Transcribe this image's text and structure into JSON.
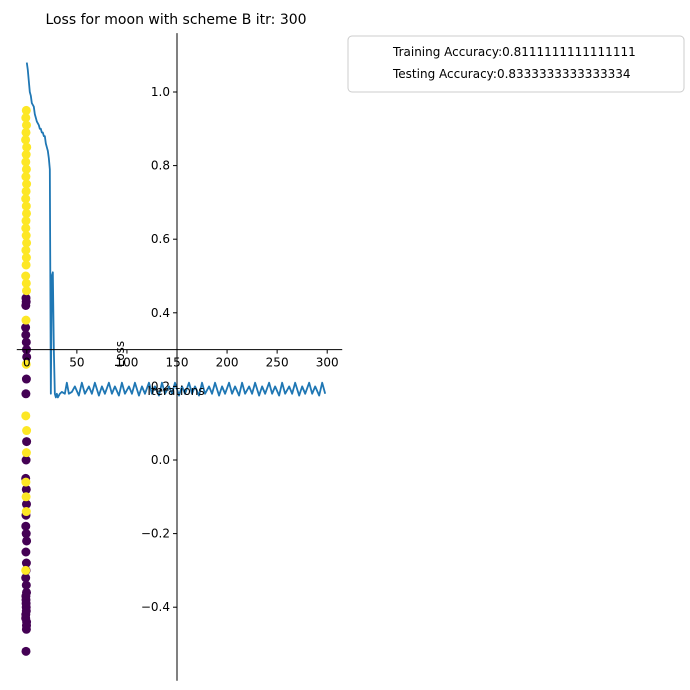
{
  "chart_data": {
    "type": "line",
    "title": "Loss for moon with scheme B itr: 300",
    "xlabel": "Iterations",
    "ylabel": "Loss",
    "xlim": [
      -10,
      315
    ],
    "ylim": [
      -0.6,
      1.16
    ],
    "grid": false,
    "legend_position": "outside-top-right",
    "x_ticks": [
      0,
      50,
      100,
      150,
      200,
      250,
      300
    ],
    "y_ticks": [
      -0.4,
      -0.2,
      0.0,
      0.2,
      0.4,
      0.6,
      0.8,
      1.0
    ],
    "x_tick_labels": [
      "0",
      "50",
      "100",
      "150",
      "200",
      "250",
      "300"
    ],
    "y_tick_labels": [
      "−0.4",
      "−0.2",
      "0.0",
      "0.2",
      "0.4",
      "0.6",
      "0.8",
      "1.0"
    ],
    "legend": [
      {
        "label": "Training Accuracy:0.8111111111111111"
      },
      {
        "label": "Testing Accuracy:0.8333333333333334"
      }
    ],
    "colors": {
      "loss_line": "#1f77b4",
      "class_0": "#440154",
      "class_1": "#fde725"
    },
    "series": [
      {
        "name": "",
        "style": "line",
        "x": [
          0,
          1,
          2,
          3,
          4,
          5,
          6,
          7,
          8,
          9,
          10,
          11,
          12,
          13,
          14,
          15,
          16,
          17,
          18,
          19,
          20,
          21,
          22,
          23,
          24,
          25,
          26,
          27,
          28,
          29,
          30,
          31,
          32,
          33,
          35,
          38,
          40,
          42,
          45,
          48,
          52,
          55,
          58,
          62,
          65,
          68,
          72,
          75,
          78,
          82,
          85,
          88,
          92,
          95,
          98,
          102,
          105,
          108,
          112,
          115,
          118,
          122,
          125,
          128,
          132,
          135,
          138,
          142,
          145,
          148,
          152,
          155,
          158,
          162,
          165,
          168,
          172,
          175,
          178,
          182,
          185,
          188,
          192,
          195,
          198,
          202,
          205,
          208,
          212,
          215,
          218,
          222,
          225,
          228,
          232,
          235,
          238,
          242,
          245,
          248,
          252,
          255,
          258,
          262,
          265,
          268,
          272,
          275,
          278,
          282,
          285,
          288,
          292,
          295,
          298
        ],
        "y": [
          1.08,
          1.06,
          1.03,
          1.0,
          0.99,
          0.97,
          0.965,
          0.96,
          0.94,
          0.93,
          0.92,
          0.915,
          0.91,
          0.9,
          0.9,
          0.89,
          0.89,
          0.88,
          0.88,
          0.86,
          0.85,
          0.84,
          0.82,
          0.79,
          0.18,
          0.5,
          0.51,
          0.3,
          0.18,
          0.17,
          0.18,
          0.17,
          0.175,
          0.18,
          0.185,
          0.18,
          0.21,
          0.18,
          0.185,
          0.2,
          0.175,
          0.21,
          0.18,
          0.2,
          0.18,
          0.21,
          0.175,
          0.2,
          0.18,
          0.21,
          0.18,
          0.2,
          0.175,
          0.21,
          0.18,
          0.2,
          0.18,
          0.21,
          0.175,
          0.2,
          0.18,
          0.21,
          0.18,
          0.2,
          0.175,
          0.21,
          0.18,
          0.2,
          0.18,
          0.21,
          0.175,
          0.2,
          0.18,
          0.21,
          0.18,
          0.2,
          0.175,
          0.21,
          0.18,
          0.2,
          0.18,
          0.21,
          0.175,
          0.2,
          0.18,
          0.21,
          0.18,
          0.2,
          0.175,
          0.21,
          0.18,
          0.2,
          0.18,
          0.21,
          0.175,
          0.2,
          0.18,
          0.21,
          0.18,
          0.2,
          0.175,
          0.21,
          0.18,
          0.2,
          0.18,
          0.21,
          0.175,
          0.2,
          0.18,
          0.21,
          0.18,
          0.2,
          0.175,
          0.21,
          0.18
        ]
      },
      {
        "name": "",
        "style": "scatter",
        "x": [
          -0.5,
          -1,
          -0.3,
          -0.8,
          -1.2,
          -0.1,
          -0.6,
          -1,
          -0.4,
          -0.9,
          -0.2,
          -0.7,
          -1.1,
          -0.5,
          -0.3,
          -0.8,
          -1,
          -0.6,
          -0.2,
          -0.9,
          -0.4,
          -0.7,
          -1.1,
          -0.5,
          -0.3,
          -0.8,
          -0.6,
          -1,
          -0.2,
          -0.4,
          -0.9,
          -0.7,
          -0.5,
          -1.1,
          -0.3,
          -0.8
        ],
        "y": [
          0.32,
          0.42,
          0.3,
          0.44,
          0.36,
          0.28,
          0.43,
          0.34,
          0.22,
          0.18,
          0.05,
          0.0,
          -0.05,
          -0.08,
          -0.12,
          -0.15,
          -0.18,
          -0.2,
          -0.22,
          -0.25,
          -0.28,
          -0.3,
          -0.32,
          -0.34,
          -0.36,
          -0.38,
          -0.4,
          -0.42,
          -0.44,
          -0.46,
          -0.37,
          -0.39,
          -0.41,
          -0.43,
          -0.45,
          -0.52
        ],
        "color": "#440154"
      },
      {
        "name": "",
        "style": "scatter",
        "x": [
          -0.5,
          -1,
          -0.3,
          -0.8,
          -1.2,
          -0.1,
          -0.6,
          -1,
          -0.4,
          -0.9,
          -0.2,
          -0.7,
          -1.1,
          -0.5,
          -0.3,
          -0.8,
          -1,
          -0.6,
          -0.2,
          -0.9,
          -0.4,
          -0.7,
          -1.1,
          -0.5,
          -0.3,
          -0.8,
          -0.6,
          -1,
          -0.2,
          -0.4,
          -0.9,
          -0.7,
          -0.5,
          -1.1
        ],
        "y": [
          0.95,
          0.93,
          0.91,
          0.89,
          0.87,
          0.85,
          0.83,
          0.81,
          0.79,
          0.77,
          0.75,
          0.73,
          0.71,
          0.69,
          0.67,
          0.65,
          0.63,
          0.61,
          0.59,
          0.57,
          0.55,
          0.53,
          0.5,
          0.48,
          0.46,
          0.38,
          0.26,
          0.12,
          0.08,
          0.02,
          -0.06,
          -0.1,
          -0.14,
          -0.3
        ],
        "color": "#fde725"
      }
    ]
  }
}
